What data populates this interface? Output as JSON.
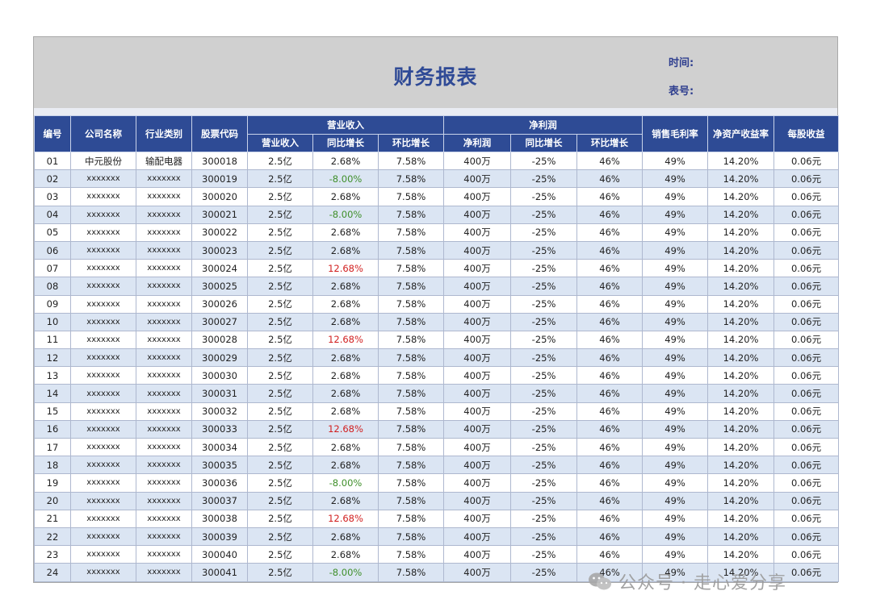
{
  "report": {
    "title": "财务报表",
    "time_label": "时间:",
    "no_label": "表号:"
  },
  "headers": {
    "no": "编号",
    "company": "公司名称",
    "industry": "行业类别",
    "code": "股票代码",
    "revenue_group": "营业收入",
    "revenue": "营业收入",
    "yoy": "同比增长",
    "mom": "环比增长",
    "profit_group": "净利润",
    "profit": "净利润",
    "profit_yoy": "同比增长",
    "profit_mom": "环比增长",
    "gross_margin": "销售毛利率",
    "roe": "净资产收益率",
    "eps": "每股收益"
  },
  "rows": [
    {
      "no": "01",
      "company": "中元股份",
      "industry": "输配电器",
      "code": "300018",
      "revenue": "2.5亿",
      "yoy": "2.68%",
      "mom": "7.58%",
      "profit": "400万",
      "profit_yoy": "-25%",
      "profit_mom": "46%",
      "gross_margin": "49%",
      "roe": "14.20%",
      "eps": "0.06元",
      "yoy_color": "normal"
    },
    {
      "no": "02",
      "company": "xxxxxxx",
      "industry": "xxxxxxx",
      "code": "300019",
      "revenue": "2.5亿",
      "yoy": "-8.00%",
      "mom": "7.58%",
      "profit": "400万",
      "profit_yoy": "-25%",
      "profit_mom": "46%",
      "gross_margin": "49%",
      "roe": "14.20%",
      "eps": "0.06元",
      "yoy_color": "neg"
    },
    {
      "no": "03",
      "company": "xxxxxxx",
      "industry": "xxxxxxx",
      "code": "300020",
      "revenue": "2.5亿",
      "yoy": "2.68%",
      "mom": "7.58%",
      "profit": "400万",
      "profit_yoy": "-25%",
      "profit_mom": "46%",
      "gross_margin": "49%",
      "roe": "14.20%",
      "eps": "0.06元",
      "yoy_color": "normal"
    },
    {
      "no": "04",
      "company": "xxxxxxx",
      "industry": "xxxxxxx",
      "code": "300021",
      "revenue": "2.5亿",
      "yoy": "-8.00%",
      "mom": "7.58%",
      "profit": "400万",
      "profit_yoy": "-25%",
      "profit_mom": "46%",
      "gross_margin": "49%",
      "roe": "14.20%",
      "eps": "0.06元",
      "yoy_color": "neg"
    },
    {
      "no": "05",
      "company": "xxxxxxx",
      "industry": "xxxxxxx",
      "code": "300022",
      "revenue": "2.5亿",
      "yoy": "2.68%",
      "mom": "7.58%",
      "profit": "400万",
      "profit_yoy": "-25%",
      "profit_mom": "46%",
      "gross_margin": "49%",
      "roe": "14.20%",
      "eps": "0.06元",
      "yoy_color": "normal"
    },
    {
      "no": "06",
      "company": "xxxxxxx",
      "industry": "xxxxxxx",
      "code": "300023",
      "revenue": "2.5亿",
      "yoy": "2.68%",
      "mom": "7.58%",
      "profit": "400万",
      "profit_yoy": "-25%",
      "profit_mom": "46%",
      "gross_margin": "49%",
      "roe": "14.20%",
      "eps": "0.06元",
      "yoy_color": "normal"
    },
    {
      "no": "07",
      "company": "xxxxxxx",
      "industry": "xxxxxxx",
      "code": "300024",
      "revenue": "2.5亿",
      "yoy": "12.68%",
      "mom": "7.58%",
      "profit": "400万",
      "profit_yoy": "-25%",
      "profit_mom": "46%",
      "gross_margin": "49%",
      "roe": "14.20%",
      "eps": "0.06元",
      "yoy_color": "pos"
    },
    {
      "no": "08",
      "company": "xxxxxxx",
      "industry": "xxxxxxx",
      "code": "300025",
      "revenue": "2.5亿",
      "yoy": "2.68%",
      "mom": "7.58%",
      "profit": "400万",
      "profit_yoy": "-25%",
      "profit_mom": "46%",
      "gross_margin": "49%",
      "roe": "14.20%",
      "eps": "0.06元",
      "yoy_color": "normal"
    },
    {
      "no": "09",
      "company": "xxxxxxx",
      "industry": "xxxxxxx",
      "code": "300026",
      "revenue": "2.5亿",
      "yoy": "2.68%",
      "mom": "7.58%",
      "profit": "400万",
      "profit_yoy": "-25%",
      "profit_mom": "46%",
      "gross_margin": "49%",
      "roe": "14.20%",
      "eps": "0.06元",
      "yoy_color": "normal"
    },
    {
      "no": "10",
      "company": "xxxxxxx",
      "industry": "xxxxxxx",
      "code": "300027",
      "revenue": "2.5亿",
      "yoy": "2.68%",
      "mom": "7.58%",
      "profit": "400万",
      "profit_yoy": "-25%",
      "profit_mom": "46%",
      "gross_margin": "49%",
      "roe": "14.20%",
      "eps": "0.06元",
      "yoy_color": "normal"
    },
    {
      "no": "11",
      "company": "xxxxxxx",
      "industry": "xxxxxxx",
      "code": "300028",
      "revenue": "2.5亿",
      "yoy": "12.68%",
      "mom": "7.58%",
      "profit": "400万",
      "profit_yoy": "-25%",
      "profit_mom": "46%",
      "gross_margin": "49%",
      "roe": "14.20%",
      "eps": "0.06元",
      "yoy_color": "pos"
    },
    {
      "no": "12",
      "company": "xxxxxxx",
      "industry": "xxxxxxx",
      "code": "300029",
      "revenue": "2.5亿",
      "yoy": "2.68%",
      "mom": "7.58%",
      "profit": "400万",
      "profit_yoy": "-25%",
      "profit_mom": "46%",
      "gross_margin": "49%",
      "roe": "14.20%",
      "eps": "0.06元",
      "yoy_color": "normal"
    },
    {
      "no": "13",
      "company": "xxxxxxx",
      "industry": "xxxxxxx",
      "code": "300030",
      "revenue": "2.5亿",
      "yoy": "2.68%",
      "mom": "7.58%",
      "profit": "400万",
      "profit_yoy": "-25%",
      "profit_mom": "46%",
      "gross_margin": "49%",
      "roe": "14.20%",
      "eps": "0.06元",
      "yoy_color": "normal"
    },
    {
      "no": "14",
      "company": "xxxxxxx",
      "industry": "xxxxxxx",
      "code": "300031",
      "revenue": "2.5亿",
      "yoy": "2.68%",
      "mom": "7.58%",
      "profit": "400万",
      "profit_yoy": "-25%",
      "profit_mom": "46%",
      "gross_margin": "49%",
      "roe": "14.20%",
      "eps": "0.06元",
      "yoy_color": "normal"
    },
    {
      "no": "15",
      "company": "xxxxxxx",
      "industry": "xxxxxxx",
      "code": "300032",
      "revenue": "2.5亿",
      "yoy": "2.68%",
      "mom": "7.58%",
      "profit": "400万",
      "profit_yoy": "-25%",
      "profit_mom": "46%",
      "gross_margin": "49%",
      "roe": "14.20%",
      "eps": "0.06元",
      "yoy_color": "normal"
    },
    {
      "no": "16",
      "company": "xxxxxxx",
      "industry": "xxxxxxx",
      "code": "300033",
      "revenue": "2.5亿",
      "yoy": "12.68%",
      "mom": "7.58%",
      "profit": "400万",
      "profit_yoy": "-25%",
      "profit_mom": "46%",
      "gross_margin": "49%",
      "roe": "14.20%",
      "eps": "0.06元",
      "yoy_color": "pos"
    },
    {
      "no": "17",
      "company": "xxxxxxx",
      "industry": "xxxxxxx",
      "code": "300034",
      "revenue": "2.5亿",
      "yoy": "2.68%",
      "mom": "7.58%",
      "profit": "400万",
      "profit_yoy": "-25%",
      "profit_mom": "46%",
      "gross_margin": "49%",
      "roe": "14.20%",
      "eps": "0.06元",
      "yoy_color": "normal"
    },
    {
      "no": "18",
      "company": "xxxxxxx",
      "industry": "xxxxxxx",
      "code": "300035",
      "revenue": "2.5亿",
      "yoy": "2.68%",
      "mom": "7.58%",
      "profit": "400万",
      "profit_yoy": "-25%",
      "profit_mom": "46%",
      "gross_margin": "49%",
      "roe": "14.20%",
      "eps": "0.06元",
      "yoy_color": "normal"
    },
    {
      "no": "19",
      "company": "xxxxxxx",
      "industry": "xxxxxxx",
      "code": "300036",
      "revenue": "2.5亿",
      "yoy": "-8.00%",
      "mom": "7.58%",
      "profit": "400万",
      "profit_yoy": "-25%",
      "profit_mom": "46%",
      "gross_margin": "49%",
      "roe": "14.20%",
      "eps": "0.06元",
      "yoy_color": "neg"
    },
    {
      "no": "20",
      "company": "xxxxxxx",
      "industry": "xxxxxxx",
      "code": "300037",
      "revenue": "2.5亿",
      "yoy": "2.68%",
      "mom": "7.58%",
      "profit": "400万",
      "profit_yoy": "-25%",
      "profit_mom": "46%",
      "gross_margin": "49%",
      "roe": "14.20%",
      "eps": "0.06元",
      "yoy_color": "normal"
    },
    {
      "no": "21",
      "company": "xxxxxxx",
      "industry": "xxxxxxx",
      "code": "300038",
      "revenue": "2.5亿",
      "yoy": "12.68%",
      "mom": "7.58%",
      "profit": "400万",
      "profit_yoy": "-25%",
      "profit_mom": "46%",
      "gross_margin": "49%",
      "roe": "14.20%",
      "eps": "0.06元",
      "yoy_color": "pos"
    },
    {
      "no": "22",
      "company": "xxxxxxx",
      "industry": "xxxxxxx",
      "code": "300039",
      "revenue": "2.5亿",
      "yoy": "2.68%",
      "mom": "7.58%",
      "profit": "400万",
      "profit_yoy": "-25%",
      "profit_mom": "46%",
      "gross_margin": "49%",
      "roe": "14.20%",
      "eps": "0.06元",
      "yoy_color": "normal"
    },
    {
      "no": "23",
      "company": "xxxxxxx",
      "industry": "xxxxxxx",
      "code": "300040",
      "revenue": "2.5亿",
      "yoy": "2.68%",
      "mom": "7.58%",
      "profit": "400万",
      "profit_yoy": "-25%",
      "profit_mom": "46%",
      "gross_margin": "49%",
      "roe": "14.20%",
      "eps": "0.06元",
      "yoy_color": "normal"
    },
    {
      "no": "24",
      "company": "xxxxxxx",
      "industry": "xxxxxxx",
      "code": "300041",
      "revenue": "2.5亿",
      "yoy": "-8.00%",
      "mom": "7.58%",
      "profit": "400万",
      "profit_yoy": "-25%",
      "profit_mom": "46%",
      "gross_margin": "49%",
      "roe": "14.20%",
      "eps": "0.06元",
      "yoy_color": "neg"
    }
  ],
  "watermark": {
    "text": "公众号 · 走心爱分享",
    "icon": "wechat-icon"
  },
  "colors": {
    "header_bg": "#2e4b95",
    "title": "#2f4a96",
    "banner_bg": "#d0d0d0",
    "stripe": "#dbe5f3",
    "positive": "#d11f1f",
    "negative": "#3f8f2a"
  }
}
